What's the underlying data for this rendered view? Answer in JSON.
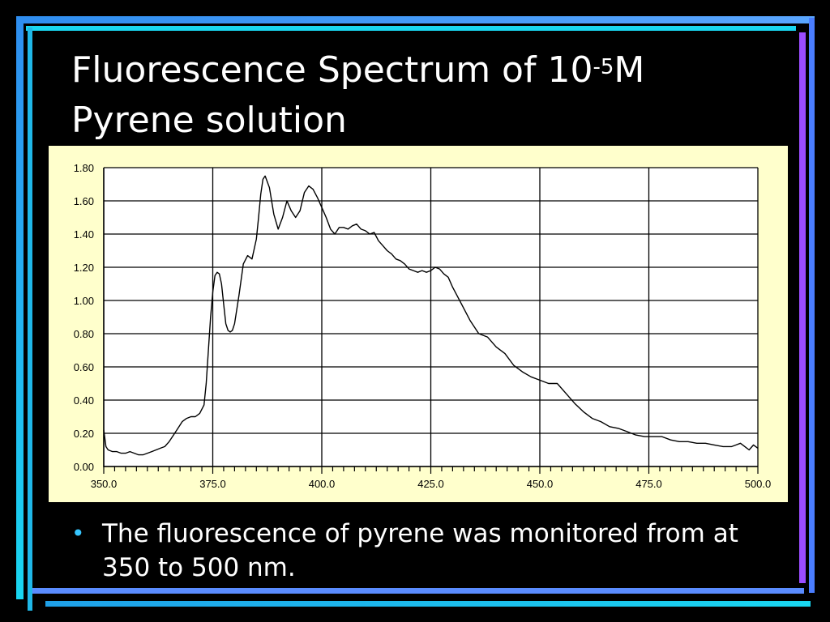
{
  "slide": {
    "title_main": "Fluorescence Spectrum of 10",
    "title_exponent": "-5",
    "title_unit": "M",
    "title_line2": "Pyrene solution",
    "bullets": [
      "The fluorescence of pyrene was monitored from at 350 to 500 nm."
    ],
    "colors": {
      "background": "#000000",
      "accent_blue": "#2f8ef0",
      "accent_cyan": "#19d6f0",
      "accent_purple": "#9b4dff",
      "bullet": "#36c6ff"
    }
  },
  "chart_data": {
    "type": "line",
    "title": "",
    "xlabel": "",
    "ylabel": "",
    "xlim": [
      350,
      500
    ],
    "ylim": [
      0,
      1.8
    ],
    "xticks": [
      "350.0",
      "375.0",
      "400.0",
      "425.0",
      "450.0",
      "475.0",
      "500.0"
    ],
    "yticks": [
      "0.00",
      "0.20",
      "0.40",
      "0.60",
      "0.80",
      "1.00",
      "1.20",
      "1.40",
      "1.60",
      "1.80"
    ],
    "grid": true,
    "legend": "none",
    "colors": {
      "plot_bg": "#ffffff",
      "panel_bg": "#ffffcc",
      "line": "#000000"
    },
    "series": [
      {
        "x": [
          350.0,
          350.5,
          351.0,
          352.0,
          353.0,
          354.0,
          355.0,
          356.0,
          357.0,
          358.0,
          359.0,
          360.0,
          361.0,
          362.0,
          363.0,
          364.0,
          365.0,
          366.0,
          367.0,
          368.0,
          369.0,
          370.0,
          371.0,
          372.0,
          373.0,
          373.5,
          374.0,
          374.5,
          375.0,
          375.5,
          376.0,
          376.5,
          377.0,
          377.5,
          378.0,
          378.5,
          379.0,
          379.5,
          380.0,
          381.0,
          382.0,
          383.0,
          384.0,
          385.0,
          385.5,
          386.0,
          386.5,
          387.0,
          388.0,
          389.0,
          390.0,
          391.0,
          392.0,
          393.0,
          394.0,
          395.0,
          396.0,
          397.0,
          398.0,
          399.0,
          400.0,
          401.0,
          402.0,
          403.0,
          404.0,
          405.0,
          406.0,
          407.0,
          408.0,
          409.0,
          410.0,
          411.0,
          412.0,
          413.0,
          414.0,
          415.0,
          416.0,
          417.0,
          418.0,
          419.0,
          420.0,
          421.0,
          422.0,
          423.0,
          424.0,
          425.0,
          426.0,
          427.0,
          428.0,
          429.0,
          430.0,
          432.0,
          434.0,
          436.0,
          438.0,
          440.0,
          442.0,
          444.0,
          446.0,
          448.0,
          450.0,
          452.0,
          454.0,
          456.0,
          458.0,
          460.0,
          462.0,
          464.0,
          466.0,
          468.0,
          470.0,
          472.0,
          474.0,
          476.0,
          478.0,
          480.0,
          482.0,
          484.0,
          486.0,
          488.0,
          490.0,
          492.0,
          494.0,
          495.0,
          496.0,
          497.0,
          498.0,
          499.0,
          500.0
        ],
        "values": [
          0.22,
          0.12,
          0.1,
          0.09,
          0.09,
          0.08,
          0.08,
          0.09,
          0.08,
          0.07,
          0.07,
          0.08,
          0.09,
          0.1,
          0.11,
          0.12,
          0.15,
          0.19,
          0.23,
          0.27,
          0.29,
          0.3,
          0.3,
          0.32,
          0.37,
          0.5,
          0.7,
          0.9,
          1.05,
          1.15,
          1.17,
          1.16,
          1.1,
          0.98,
          0.86,
          0.82,
          0.81,
          0.82,
          0.86,
          1.03,
          1.22,
          1.27,
          1.25,
          1.37,
          1.5,
          1.64,
          1.73,
          1.75,
          1.68,
          1.52,
          1.43,
          1.5,
          1.6,
          1.54,
          1.5,
          1.54,
          1.65,
          1.69,
          1.67,
          1.62,
          1.56,
          1.5,
          1.43,
          1.4,
          1.44,
          1.44,
          1.43,
          1.45,
          1.46,
          1.43,
          1.42,
          1.4,
          1.41,
          1.36,
          1.33,
          1.3,
          1.28,
          1.25,
          1.24,
          1.22,
          1.19,
          1.18,
          1.17,
          1.18,
          1.17,
          1.18,
          1.2,
          1.19,
          1.16,
          1.14,
          1.08,
          0.98,
          0.88,
          0.8,
          0.78,
          0.72,
          0.68,
          0.61,
          0.57,
          0.54,
          0.52,
          0.5,
          0.5,
          0.44,
          0.38,
          0.33,
          0.29,
          0.27,
          0.24,
          0.23,
          0.21,
          0.19,
          0.18,
          0.18,
          0.18,
          0.16,
          0.15,
          0.15,
          0.14,
          0.14,
          0.13,
          0.12,
          0.12,
          0.13,
          0.14,
          0.12,
          0.1,
          0.13,
          0.11
        ]
      }
    ]
  }
}
